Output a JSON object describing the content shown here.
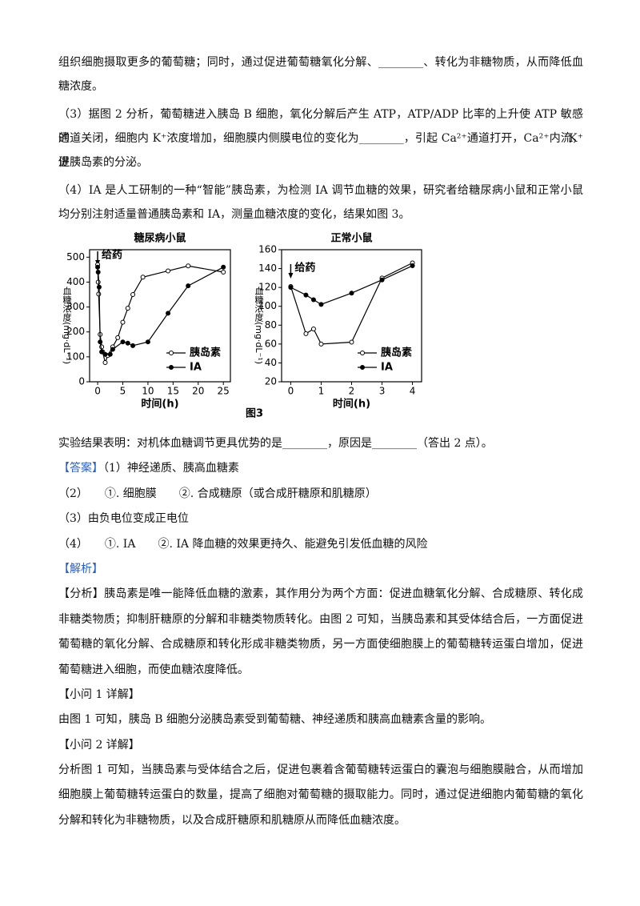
{
  "blocks": [
    {
      "lines": [
        "组织细胞摄取更多的葡萄糖；同时，通过促进葡萄糖氧化分解、________、转化为非糖物质，从而降低血",
        "糖浓度。"
      ]
    },
    {
      "lines": [
        "（3）据图 2 分析，葡萄糖进入胰岛 B 细胞，氧化分解后产生 ATP，ATP/ADP 比率的上升使 ATP 敏感的 K⁺",
        "通道关闭，细胞内 K⁺浓度增加，细胞膜内侧膜电位的变化为________，引起 Ca²⁺通道打开，Ca²⁺内流，促",
        "进胰岛素的分泌。"
      ]
    },
    {
      "lines": [
        "（4）IA 是人工研制的一种“智能”胰岛素，为检测 IA 调节血糖的效果，研究者给糖尿病小鼠和正常小鼠",
        "均分别注射适量普通胰岛素和 IA，测量血糖浓度的变化，结果如图 3。"
      ]
    },
    {
      "lines": [
        "实验结果表明：对机体血糖调节更具优势的是________，原因是________（答出 2 点）。"
      ]
    },
    {
      "label": "【答案】",
      "lines": [
        "（1）神经递质、胰高血糖素"
      ]
    },
    {
      "lines": [
        "（2）　　①. 细胞膜　　②. 合成糖原（或合成肝糖原和肌糖原）"
      ]
    },
    {
      "lines": [
        "（3）由负电位变成正电位"
      ]
    },
    {
      "lines": [
        "（4）　　①. IA　　②. IA 降血糖的效果更持久、能避免引发低血糖的风险"
      ]
    },
    {
      "label": "【解析】"
    },
    {
      "lines": [
        "【分析】胰岛素是唯一能降低血糖的激素，其作用分为两个方面：促进血糖氧化分解、合成糖原、转化成",
        "非糖类物质；抑制肝糖原的分解和非糖类物质转化。由图 2 可知，当胰岛素和其受体结合后，一方面促进",
        "葡萄糖的氧化分解、合成糖原和转化形成非糖类物质，另一方面使细胞膜上的葡萄糖转运蛋白增加，促进",
        "葡萄糖进入细胞，而使血糖浓度降低。"
      ]
    },
    {
      "lines": [
        "【小问 1 详解】"
      ]
    },
    {
      "lines": [
        "由图 1 可知，胰岛 B 细胞分泌胰岛素受到葡萄糖、神经递质和胰高血糖素含量的影响。"
      ]
    },
    {
      "lines": [
        "【小问 2 详解】"
      ]
    },
    {
      "lines": [
        "分析图 1 可知，当胰岛素与受体结合之后，促进包裹着含葡萄糖转运蛋白的囊泡与细胞膜融合，从而增加",
        "细胞膜上葡萄糖转运蛋白的数量，提高了细胞对葡萄糖的摄取能力。同时，通过促进细胞内葡萄糖的氧化",
        "分解和转化为非糖物质，以及合成肝糖原和肌糖原从而降低血糖浓度。"
      ]
    }
  ],
  "figure_caption": "图3",
  "chart_data": [
    {
      "type": "line",
      "title": "糖尿病小鼠",
      "x_label": "时间(h)",
      "y_label": "血糖浓度(mg·dL⁻¹)",
      "annotation": "给药",
      "annotation_x": 0,
      "xlim": [
        -1.6,
        26.4
      ],
      "xticks": [
        0,
        5,
        10,
        15,
        20,
        25
      ],
      "ylim": [
        0,
        530
      ],
      "yticks": [
        0,
        100,
        200,
        300,
        400,
        500
      ],
      "legend": "lower right",
      "series": [
        {
          "name": "胰岛素",
          "color": "#000000",
          "marker": "open",
          "x": [
            0,
            0.1,
            0.2,
            0.5,
            0.8,
            1,
            1.5,
            2,
            3,
            4,
            5,
            6,
            7,
            9,
            14,
            18,
            25
          ],
          "values": [
            470,
            400,
            352,
            190,
            140,
            120,
            77,
            105,
            140,
            177,
            239,
            295,
            350,
            420,
            445,
            465,
            440
          ]
        },
        {
          "name": "IA",
          "color": "#000000",
          "marker": "filled",
          "x": [
            0,
            0.1,
            0.3,
            0.5,
            0.8,
            1.5,
            2.5,
            3,
            5,
            6,
            7,
            10,
            14,
            18,
            25
          ],
          "values": [
            460,
            440,
            380,
            160,
            120,
            110,
            110,
            130,
            160,
            155,
            145,
            160,
            275,
            385,
            460
          ]
        }
      ]
    },
    {
      "type": "line",
      "title": "正常小鼠",
      "x_label": "时间(h)",
      "y_label": "血糖浓度(mg·dL⁻¹)",
      "annotation": "给药",
      "annotation_x": 0,
      "xlim": [
        -0.3,
        4.3
      ],
      "xticks": [
        0,
        1,
        2,
        3,
        4
      ],
      "ylim": [
        20,
        160
      ],
      "yticks": [
        20,
        40,
        60,
        80,
        100,
        120,
        140,
        160
      ],
      "legend": "lower right",
      "series": [
        {
          "name": "胰岛素",
          "color": "#000000",
          "marker": "open",
          "x": [
            0,
            0.5,
            0.75,
            1,
            2,
            3,
            4
          ],
          "values": [
            121,
            71,
            76,
            60,
            62,
            130,
            146
          ]
        },
        {
          "name": "IA",
          "color": "#000000",
          "marker": "filled",
          "x": [
            0,
            0.5,
            0.75,
            1,
            2,
            3,
            4
          ],
          "values": [
            120,
            112,
            107,
            102,
            114,
            128,
            143
          ]
        }
      ]
    }
  ]
}
